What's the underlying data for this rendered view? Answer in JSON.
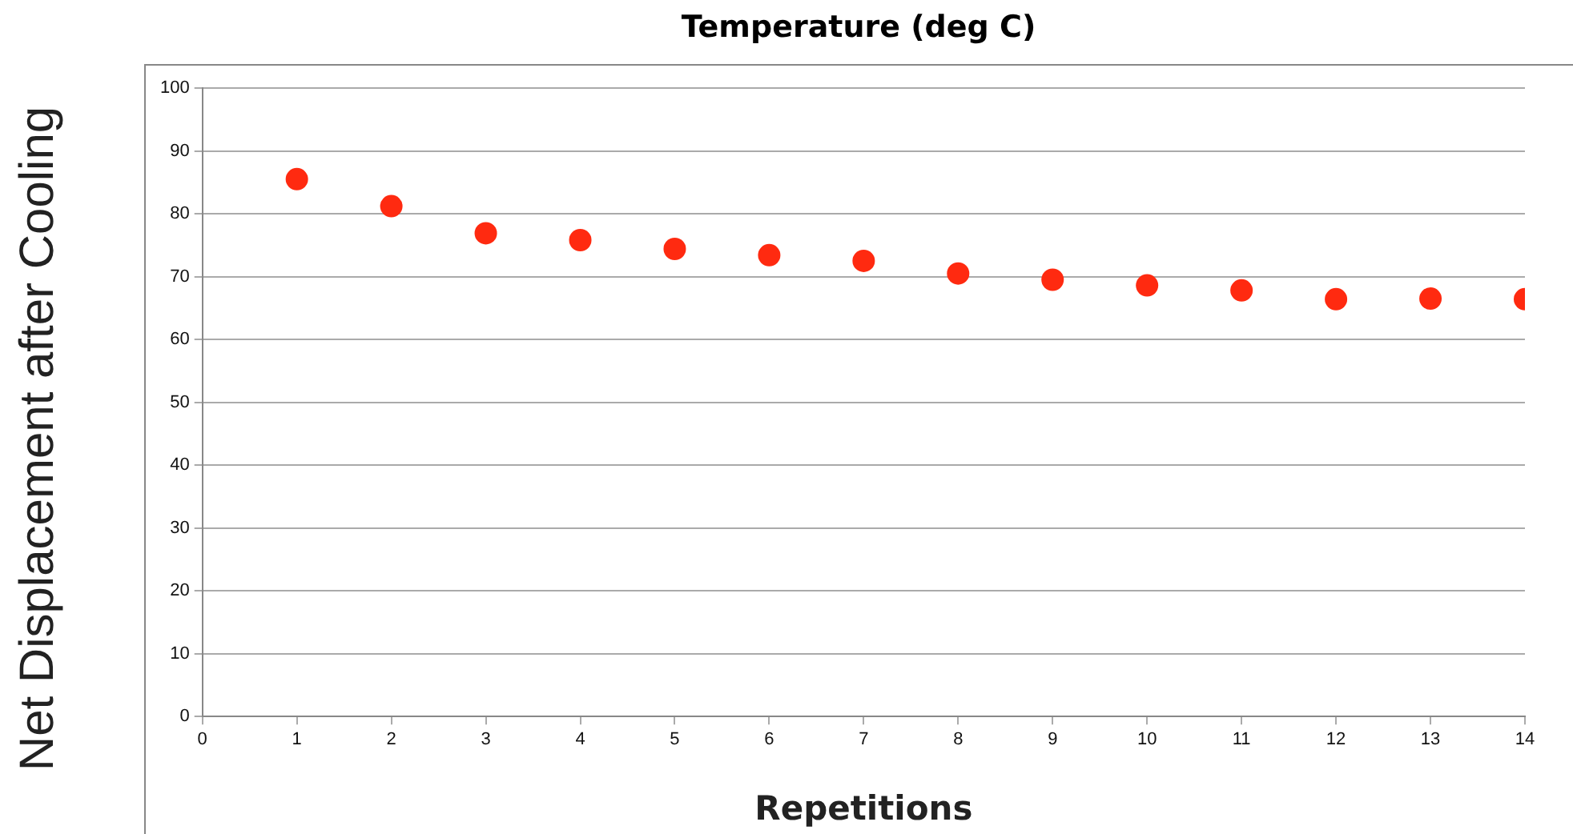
{
  "chart_data": {
    "type": "scatter",
    "title": "Temperature (deg C)",
    "xlabel": "Repetitions",
    "ylabel": "Net Displacement after Cooling",
    "x": [
      1,
      2,
      3,
      4,
      5,
      6,
      7,
      8,
      9,
      10,
      11,
      12,
      13,
      14
    ],
    "series": [
      {
        "color": "#ff2a10",
        "values": [
          85.5,
          81.2,
          76.9,
          75.8,
          74.4,
          73.4,
          72.5,
          70.5,
          69.5,
          68.6,
          67.8,
          66.4,
          66.5,
          66.4
        ]
      }
    ],
    "xlim": [
      0,
      14
    ],
    "xticks": [
      0,
      1,
      2,
      3,
      4,
      5,
      6,
      7,
      8,
      9,
      10,
      11,
      12,
      13,
      14
    ],
    "ylim": [
      0,
      100
    ],
    "yticks": [
      0,
      10,
      20,
      30,
      40,
      50,
      60,
      70,
      80,
      90,
      100
    ],
    "grid": "y",
    "marker": "circle",
    "legend": false
  }
}
